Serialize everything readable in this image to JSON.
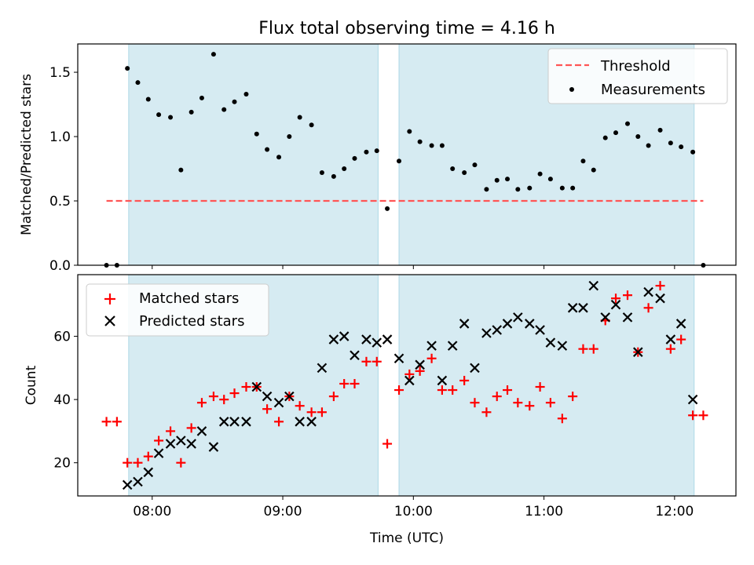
{
  "title": "Flux total observing time = 4.16 h",
  "colors": {
    "shade": "#add8e6",
    "threshold": "#ff5555",
    "matched": "#ff0000",
    "predicted": "#000000",
    "measurement": "#000000"
  },
  "chart_data": [
    {
      "type": "scatter",
      "panel": "top",
      "ylabel": "Matched/Predicted stars",
      "xlim": [
        7.43,
        12.47
      ],
      "ylim": [
        0,
        1.72
      ],
      "yticks": [
        0.0,
        0.5,
        1.0,
        1.5
      ],
      "ytick_labels": [
        "0.0",
        "0.5",
        "1.0",
        "1.5"
      ],
      "shaded_spans": [
        [
          7.82,
          9.73
        ],
        [
          9.89,
          12.15
        ]
      ],
      "threshold": {
        "name": "Threshold",
        "y": 0.5,
        "x_range": [
          7.65,
          12.22
        ]
      },
      "legend": {
        "position": "upper right",
        "entries": [
          "Threshold",
          "Measurements"
        ]
      },
      "series": [
        {
          "name": "Measurements",
          "points": [
            [
              7.65,
              0.0
            ],
            [
              7.73,
              0.0
            ],
            [
              7.81,
              1.53
            ],
            [
              7.89,
              1.42
            ],
            [
              7.97,
              1.29
            ],
            [
              8.05,
              1.17
            ],
            [
              8.14,
              1.15
            ],
            [
              8.22,
              0.74
            ],
            [
              8.3,
              1.19
            ],
            [
              8.38,
              1.3
            ],
            [
              8.47,
              1.64
            ],
            [
              8.55,
              1.21
            ],
            [
              8.63,
              1.27
            ],
            [
              8.72,
              1.33
            ],
            [
              8.8,
              1.02
            ],
            [
              8.88,
              0.9
            ],
            [
              8.97,
              0.84
            ],
            [
              9.05,
              1.0
            ],
            [
              9.13,
              1.15
            ],
            [
              9.22,
              1.09
            ],
            [
              9.3,
              0.72
            ],
            [
              9.39,
              0.69
            ],
            [
              9.47,
              0.75
            ],
            [
              9.55,
              0.83
            ],
            [
              9.64,
              0.88
            ],
            [
              9.72,
              0.89
            ],
            [
              9.8,
              0.44
            ],
            [
              9.89,
              0.81
            ],
            [
              9.97,
              1.04
            ],
            [
              10.05,
              0.96
            ],
            [
              10.14,
              0.93
            ],
            [
              10.22,
              0.93
            ],
            [
              10.3,
              0.75
            ],
            [
              10.39,
              0.72
            ],
            [
              10.47,
              0.78
            ],
            [
              10.56,
              0.59
            ],
            [
              10.64,
              0.66
            ],
            [
              10.72,
              0.67
            ],
            [
              10.8,
              0.59
            ],
            [
              10.89,
              0.6
            ],
            [
              10.97,
              0.71
            ],
            [
              11.05,
              0.67
            ],
            [
              11.14,
              0.6
            ],
            [
              11.22,
              0.6
            ],
            [
              11.3,
              0.81
            ],
            [
              11.38,
              0.74
            ],
            [
              11.47,
              0.99
            ],
            [
              11.55,
              1.03
            ],
            [
              11.64,
              1.1
            ],
            [
              11.72,
              1.0
            ],
            [
              11.8,
              0.93
            ],
            [
              11.89,
              1.05
            ],
            [
              11.97,
              0.95
            ],
            [
              12.05,
              0.92
            ],
            [
              12.14,
              0.88
            ],
            [
              12.22,
              0.0
            ]
          ]
        }
      ]
    },
    {
      "type": "scatter",
      "panel": "bottom",
      "xlabel": "Time (UTC)",
      "ylabel": "Count",
      "xlim": [
        7.43,
        12.47
      ],
      "ylim": [
        9.5,
        79.5
      ],
      "yticks": [
        20,
        40,
        60
      ],
      "ytick_labels": [
        "20",
        "40",
        "60"
      ],
      "xticks": [
        8,
        9,
        10,
        11,
        12
      ],
      "xtick_labels": [
        "08:00",
        "09:00",
        "10:00",
        "11:00",
        "12:00"
      ],
      "shaded_spans": [
        [
          7.82,
          9.73
        ],
        [
          9.89,
          12.15
        ]
      ],
      "legend": {
        "position": "upper left",
        "entries": [
          "Matched stars",
          "Predicted stars"
        ]
      },
      "series": [
        {
          "name": "Matched stars",
          "marker": "+",
          "points": [
            [
              7.65,
              33
            ],
            [
              7.73,
              33
            ],
            [
              7.81,
              20
            ],
            [
              7.89,
              20
            ],
            [
              7.97,
              22
            ],
            [
              8.05,
              27
            ],
            [
              8.14,
              30
            ],
            [
              8.22,
              20
            ],
            [
              8.3,
              31
            ],
            [
              8.38,
              39
            ],
            [
              8.47,
              41
            ],
            [
              8.55,
              40
            ],
            [
              8.63,
              42
            ],
            [
              8.72,
              44
            ],
            [
              8.8,
              44
            ],
            [
              8.88,
              37
            ],
            [
              8.97,
              33
            ],
            [
              9.05,
              41
            ],
            [
              9.13,
              38
            ],
            [
              9.22,
              36
            ],
            [
              9.3,
              36
            ],
            [
              9.39,
              41
            ],
            [
              9.47,
              45
            ],
            [
              9.55,
              45
            ],
            [
              9.64,
              52
            ],
            [
              9.72,
              52
            ],
            [
              9.8,
              26
            ],
            [
              9.89,
              43
            ],
            [
              9.97,
              48
            ],
            [
              10.05,
              49
            ],
            [
              10.14,
              53
            ],
            [
              10.22,
              43
            ],
            [
              10.3,
              43
            ],
            [
              10.39,
              46
            ],
            [
              10.47,
              39
            ],
            [
              10.56,
              36
            ],
            [
              10.64,
              41
            ],
            [
              10.72,
              43
            ],
            [
              10.8,
              39
            ],
            [
              10.89,
              38
            ],
            [
              10.97,
              44
            ],
            [
              11.05,
              39
            ],
            [
              11.14,
              34
            ],
            [
              11.22,
              41
            ],
            [
              11.3,
              56
            ],
            [
              11.38,
              56
            ],
            [
              11.47,
              65
            ],
            [
              11.55,
              72
            ],
            [
              11.64,
              73
            ],
            [
              11.72,
              55
            ],
            [
              11.8,
              69
            ],
            [
              11.89,
              76
            ],
            [
              11.97,
              56
            ],
            [
              12.05,
              59
            ],
            [
              12.14,
              35
            ],
            [
              12.22,
              35
            ]
          ]
        },
        {
          "name": "Predicted stars",
          "marker": "x",
          "points": [
            [
              7.81,
              13
            ],
            [
              7.89,
              14
            ],
            [
              7.97,
              17
            ],
            [
              8.05,
              23
            ],
            [
              8.14,
              26
            ],
            [
              8.22,
              27
            ],
            [
              8.3,
              26
            ],
            [
              8.38,
              30
            ],
            [
              8.47,
              25
            ],
            [
              8.55,
              33
            ],
            [
              8.63,
              33
            ],
            [
              8.72,
              33
            ],
            [
              8.8,
              44
            ],
            [
              8.88,
              41
            ],
            [
              8.97,
              39
            ],
            [
              9.05,
              41
            ],
            [
              9.13,
              33
            ],
            [
              9.22,
              33
            ],
            [
              9.3,
              50
            ],
            [
              9.39,
              59
            ],
            [
              9.47,
              60
            ],
            [
              9.55,
              54
            ],
            [
              9.64,
              59
            ],
            [
              9.72,
              58
            ],
            [
              9.8,
              59
            ],
            [
              9.89,
              53
            ],
            [
              9.97,
              46
            ],
            [
              10.05,
              51
            ],
            [
              10.14,
              57
            ],
            [
              10.22,
              46
            ],
            [
              10.3,
              57
            ],
            [
              10.39,
              64
            ],
            [
              10.47,
              50
            ],
            [
              10.56,
              61
            ],
            [
              10.64,
              62
            ],
            [
              10.72,
              64
            ],
            [
              10.8,
              66
            ],
            [
              10.89,
              64
            ],
            [
              10.97,
              62
            ],
            [
              11.05,
              58
            ],
            [
              11.14,
              57
            ],
            [
              11.22,
              69
            ],
            [
              11.3,
              69
            ],
            [
              11.38,
              76
            ],
            [
              11.47,
              66
            ],
            [
              11.55,
              70
            ],
            [
              11.64,
              66
            ],
            [
              11.72,
              55
            ],
            [
              11.8,
              74
            ],
            [
              11.89,
              72
            ],
            [
              11.97,
              59
            ],
            [
              12.05,
              64
            ],
            [
              12.14,
              40
            ]
          ]
        }
      ]
    }
  ]
}
